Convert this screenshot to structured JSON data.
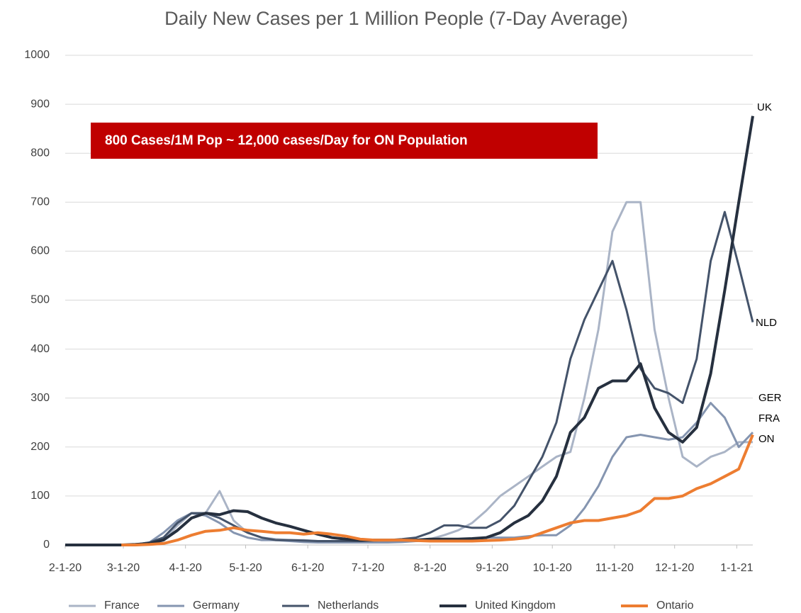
{
  "chart_data": {
    "type": "line",
    "title": "Daily New Cases per 1 Million People (7-Day Average)",
    "annotation": "800 Cases/1M Pop ~ 12,000 cases/Day for ON Population",
    "end_labels": [
      "UK",
      "NLD",
      "GER",
      "FRA",
      "ON"
    ],
    "x": [
      "2020-02-01",
      "2020-02-08",
      "2020-02-15",
      "2020-02-22",
      "2020-02-29",
      "2020-03-07",
      "2020-03-14",
      "2020-03-21",
      "2020-03-28",
      "2020-04-04",
      "2020-04-11",
      "2020-04-18",
      "2020-04-25",
      "2020-05-02",
      "2020-05-09",
      "2020-05-16",
      "2020-05-23",
      "2020-05-30",
      "2020-06-06",
      "2020-06-13",
      "2020-06-20",
      "2020-06-27",
      "2020-07-04",
      "2020-07-11",
      "2020-07-18",
      "2020-07-25",
      "2020-08-01",
      "2020-08-08",
      "2020-08-15",
      "2020-08-22",
      "2020-08-29",
      "2020-09-05",
      "2020-09-12",
      "2020-09-19",
      "2020-09-26",
      "2020-10-03",
      "2020-10-10",
      "2020-10-17",
      "2020-10-24",
      "2020-10-31",
      "2020-11-07",
      "2020-11-14",
      "2020-11-21",
      "2020-11-28",
      "2020-12-05",
      "2020-12-12",
      "2020-12-19",
      "2020-12-26",
      "2021-01-02",
      "2021-01-09"
    ],
    "series": [
      {
        "name": "France",
        "color": "#aab4c6",
        "width": 3,
        "values": [
          0,
          0,
          0,
          0,
          0,
          0,
          2,
          10,
          40,
          65,
          65,
          110,
          50,
          25,
          15,
          12,
          10,
          10,
          8,
          8,
          8,
          7,
          7,
          8,
          8,
          8,
          12,
          20,
          30,
          45,
          70,
          100,
          120,
          140,
          160,
          180,
          190,
          300,
          440,
          640,
          700,
          700,
          440,
          300,
          180,
          160,
          180,
          190,
          210,
          210
        ]
      },
      {
        "name": "Germany",
        "color": "#8595b0",
        "width": 3,
        "values": [
          0,
          0,
          0,
          0,
          0,
          1,
          5,
          25,
          50,
          65,
          60,
          45,
          25,
          15,
          10,
          10,
          8,
          6,
          5,
          5,
          5,
          5,
          5,
          5,
          6,
          8,
          10,
          10,
          12,
          12,
          15,
          15,
          15,
          18,
          20,
          20,
          40,
          75,
          120,
          180,
          220,
          225,
          220,
          215,
          220,
          250,
          290,
          260,
          200,
          230
        ]
      },
      {
        "name": "Netherlands",
        "color": "#44536a",
        "width": 3,
        "values": [
          0,
          0,
          0,
          0,
          0,
          1,
          5,
          15,
          45,
          65,
          65,
          55,
          40,
          25,
          15,
          10,
          10,
          9,
          8,
          8,
          8,
          8,
          9,
          10,
          12,
          15,
          25,
          40,
          40,
          35,
          35,
          50,
          80,
          130,
          180,
          250,
          380,
          460,
          520,
          580,
          480,
          360,
          320,
          310,
          290,
          380,
          580,
          680,
          570,
          455
        ]
      },
      {
        "name": "United Kingdom",
        "color": "#26303f",
        "width": 4,
        "values": [
          0,
          0,
          0,
          0,
          0,
          1,
          3,
          10,
          30,
          55,
          65,
          62,
          70,
          68,
          55,
          45,
          38,
          30,
          22,
          15,
          12,
          10,
          10,
          10,
          10,
          10,
          12,
          12,
          12,
          13,
          15,
          25,
          45,
          60,
          90,
          140,
          230,
          260,
          320,
          335,
          335,
          370,
          280,
          230,
          210,
          240,
          350,
          520,
          700,
          876
        ]
      },
      {
        "name": "Ontario",
        "color": "#ed7d31",
        "width": 4,
        "values": [
          null,
          null,
          null,
          null,
          0,
          0,
          1,
          3,
          10,
          20,
          28,
          30,
          35,
          30,
          28,
          25,
          25,
          22,
          25,
          22,
          18,
          12,
          10,
          10,
          10,
          9,
          8,
          8,
          8,
          8,
          9,
          10,
          12,
          15,
          25,
          35,
          45,
          50,
          50,
          55,
          60,
          70,
          95,
          95,
          100,
          115,
          125,
          140,
          155,
          225
        ]
      }
    ],
    "xlim": [
      "2020-02-01",
      "2021-01-09"
    ],
    "xticks": [
      {
        "value": "2020-02-01",
        "label": "2-1-20"
      },
      {
        "value": "2020-03-01",
        "label": "3-1-20"
      },
      {
        "value": "2020-04-01",
        "label": "4-1-20"
      },
      {
        "value": "2020-05-01",
        "label": "5-1-20"
      },
      {
        "value": "2020-06-01",
        "label": "6-1-20"
      },
      {
        "value": "2020-07-01",
        "label": "7-1-20"
      },
      {
        "value": "2020-08-01",
        "label": "8-1-20"
      },
      {
        "value": "2020-09-01",
        "label": "9-1-20"
      },
      {
        "value": "2020-10-01",
        "label": "10-1-20"
      },
      {
        "value": "2020-11-01",
        "label": "11-1-20"
      },
      {
        "value": "2020-12-01",
        "label": "12-1-20"
      },
      {
        "value": "2021-01-01",
        "label": "1-1-21"
      }
    ],
    "ylim": [
      0,
      1000
    ],
    "yticks": [
      0,
      100,
      200,
      300,
      400,
      500,
      600,
      700,
      800,
      900,
      1000
    ],
    "grid": true
  }
}
